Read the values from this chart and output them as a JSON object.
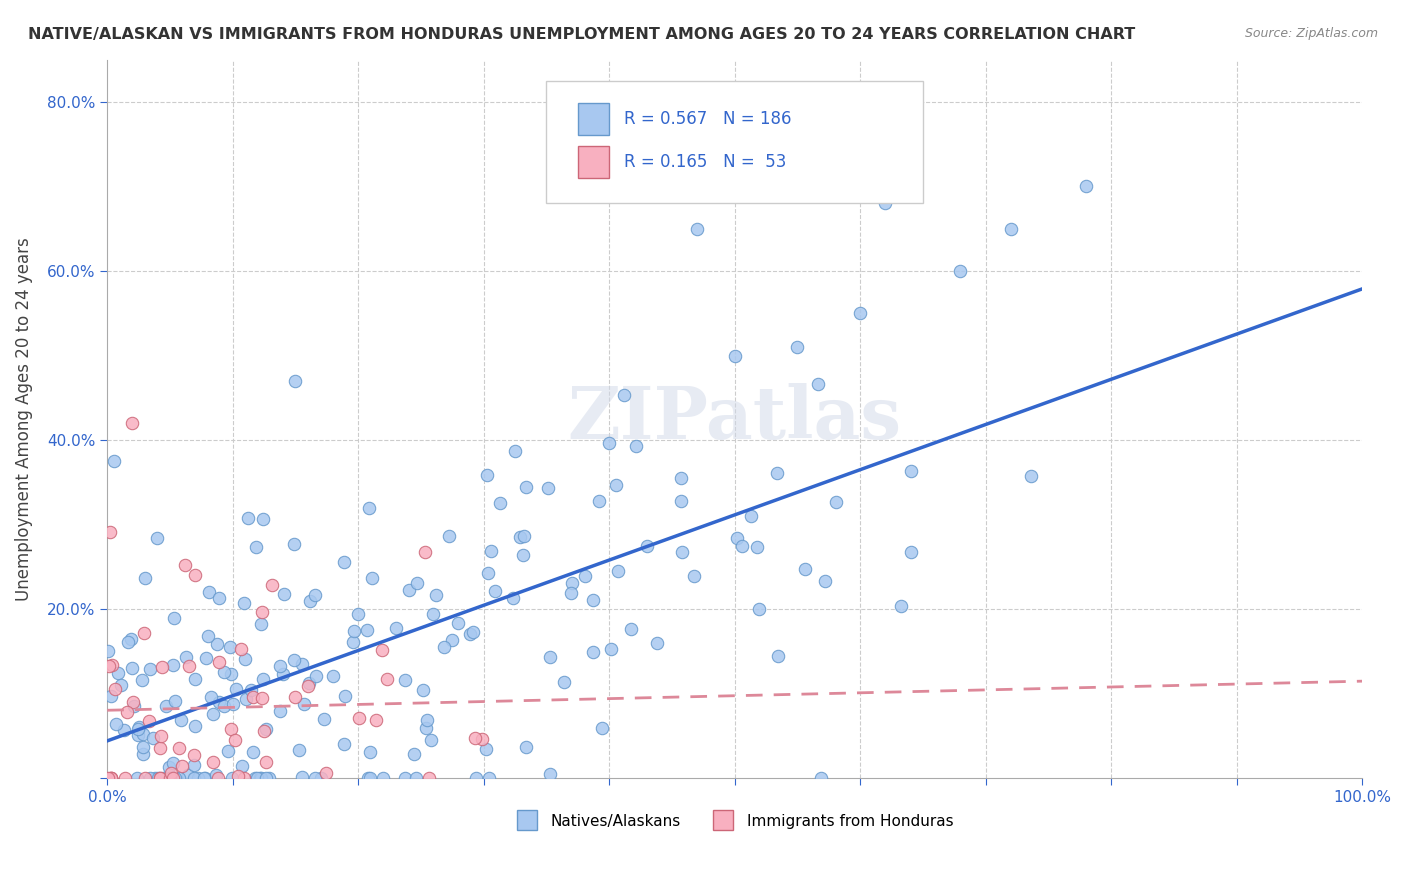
{
  "title": "NATIVE/ALASKAN VS IMMIGRANTS FROM HONDURAS UNEMPLOYMENT AMONG AGES 20 TO 24 YEARS CORRELATION CHART",
  "source": "Source: ZipAtlas.com",
  "ylabel": "Unemployment Among Ages 20 to 24 years",
  "xlim": [
    0.0,
    1.0
  ],
  "ylim": [
    0.0,
    0.85
  ],
  "native_color": "#a8c8f0",
  "native_edge_color": "#6699cc",
  "honduras_color": "#f8b0c0",
  "honduras_edge_color": "#cc6677",
  "native_line_color": "#3366cc",
  "honduras_line_color": "#dd8899",
  "R_native": 0.567,
  "N_native": 186,
  "R_honduras": 0.165,
  "N_honduras": 53,
  "watermark": "ZIPatlas"
}
